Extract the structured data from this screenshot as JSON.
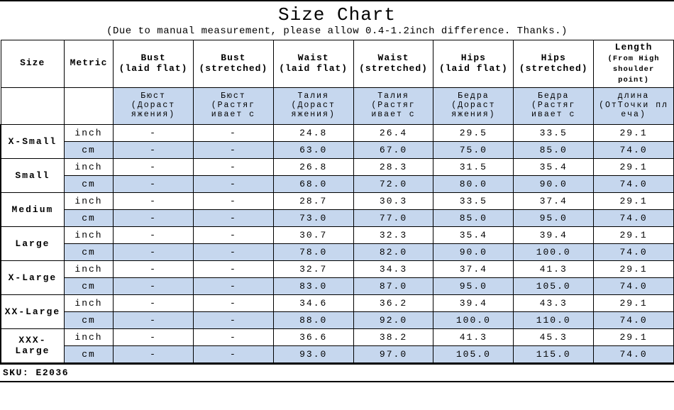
{
  "title": "Size Chart",
  "subtitle": "(Due to manual measurement, please allow 0.4-1.2inch difference. Thanks.)",
  "sku_label": "SKU:",
  "sku_value": "E2036",
  "columns": {
    "size": "Size",
    "metric": "Metric",
    "bust_flat": {
      "l1": "Bust",
      "l2": "(laid flat)"
    },
    "bust_str": {
      "l1": "Bust",
      "l2": "(stretched)"
    },
    "waist_flat": {
      "l1": "Waist",
      "l2": "(laid flat)"
    },
    "waist_str": {
      "l1": "Waist",
      "l2": "(stretched)"
    },
    "hips_flat": {
      "l1": "Hips",
      "l2": "(laid flat)"
    },
    "hips_str": {
      "l1": "Hips",
      "l2": "(stretched)"
    },
    "length": {
      "l1": "Length",
      "l2": "(From High shoulder point)"
    }
  },
  "subheaders": {
    "bust_flat": "Бюст (Дораст яжения)",
    "bust_str": "Бюст (Растяг ивает с",
    "waist_flat": "Талия (Дораст яжения)",
    "waist_str": "Талия (Растяг ивает с",
    "hips_flat": "Бедра (Дораст яжения)",
    "hips_str": "Бедра (Растяг ивает с",
    "length": "длина (ОтТочки пл еча)"
  },
  "metrics": {
    "inch": "inch",
    "cm": "cm"
  },
  "dash": "-",
  "rows": [
    {
      "size": "X-Small",
      "inch": {
        "bust_flat": "-",
        "bust_str": "-",
        "waist_flat": "24.8",
        "waist_str": "26.4",
        "hips_flat": "29.5",
        "hips_str": "33.5",
        "length": "29.1"
      },
      "cm": {
        "bust_flat": "-",
        "bust_str": "-",
        "waist_flat": "63.0",
        "waist_str": "67.0",
        "hips_flat": "75.0",
        "hips_str": "85.0",
        "length": "74.0"
      }
    },
    {
      "size": "Small",
      "inch": {
        "bust_flat": "-",
        "bust_str": "-",
        "waist_flat": "26.8",
        "waist_str": "28.3",
        "hips_flat": "31.5",
        "hips_str": "35.4",
        "length": "29.1"
      },
      "cm": {
        "bust_flat": "-",
        "bust_str": "-",
        "waist_flat": "68.0",
        "waist_str": "72.0",
        "hips_flat": "80.0",
        "hips_str": "90.0",
        "length": "74.0"
      }
    },
    {
      "size": "Medium",
      "inch": {
        "bust_flat": "-",
        "bust_str": "-",
        "waist_flat": "28.7",
        "waist_str": "30.3",
        "hips_flat": "33.5",
        "hips_str": "37.4",
        "length": "29.1"
      },
      "cm": {
        "bust_flat": "-",
        "bust_str": "-",
        "waist_flat": "73.0",
        "waist_str": "77.0",
        "hips_flat": "85.0",
        "hips_str": "95.0",
        "length": "74.0"
      }
    },
    {
      "size": "Large",
      "inch": {
        "bust_flat": "-",
        "bust_str": "-",
        "waist_flat": "30.7",
        "waist_str": "32.3",
        "hips_flat": "35.4",
        "hips_str": "39.4",
        "length": "29.1"
      },
      "cm": {
        "bust_flat": "-",
        "bust_str": "-",
        "waist_flat": "78.0",
        "waist_str": "82.0",
        "hips_flat": "90.0",
        "hips_str": "100.0",
        "length": "74.0"
      }
    },
    {
      "size": "X-Large",
      "inch": {
        "bust_flat": "-",
        "bust_str": "-",
        "waist_flat": "32.7",
        "waist_str": "34.3",
        "hips_flat": "37.4",
        "hips_str": "41.3",
        "length": "29.1"
      },
      "cm": {
        "bust_flat": "-",
        "bust_str": "-",
        "waist_flat": "83.0",
        "waist_str": "87.0",
        "hips_flat": "95.0",
        "hips_str": "105.0",
        "length": "74.0"
      }
    },
    {
      "size": "XX-Large",
      "inch": {
        "bust_flat": "-",
        "bust_str": "-",
        "waist_flat": "34.6",
        "waist_str": "36.2",
        "hips_flat": "39.4",
        "hips_str": "43.3",
        "length": "29.1"
      },
      "cm": {
        "bust_flat": "-",
        "bust_str": "-",
        "waist_flat": "88.0",
        "waist_str": "92.0",
        "hips_flat": "100.0",
        "hips_str": "110.0",
        "length": "74.0"
      }
    },
    {
      "size": "XXX-Large",
      "inch": {
        "bust_flat": "-",
        "bust_str": "-",
        "waist_flat": "36.6",
        "waist_str": "38.2",
        "hips_flat": "41.3",
        "hips_str": "45.3",
        "length": "29.1"
      },
      "cm": {
        "bust_flat": "-",
        "bust_str": "-",
        "waist_flat": "93.0",
        "waist_str": "97.0",
        "hips_flat": "105.0",
        "hips_str": "115.0",
        "length": "74.0"
      }
    }
  ],
  "style": {
    "header_bg": "#ffffff",
    "alt_bg": "#c6d7ee",
    "border_color": "#000000",
    "font_family": "Courier New"
  }
}
